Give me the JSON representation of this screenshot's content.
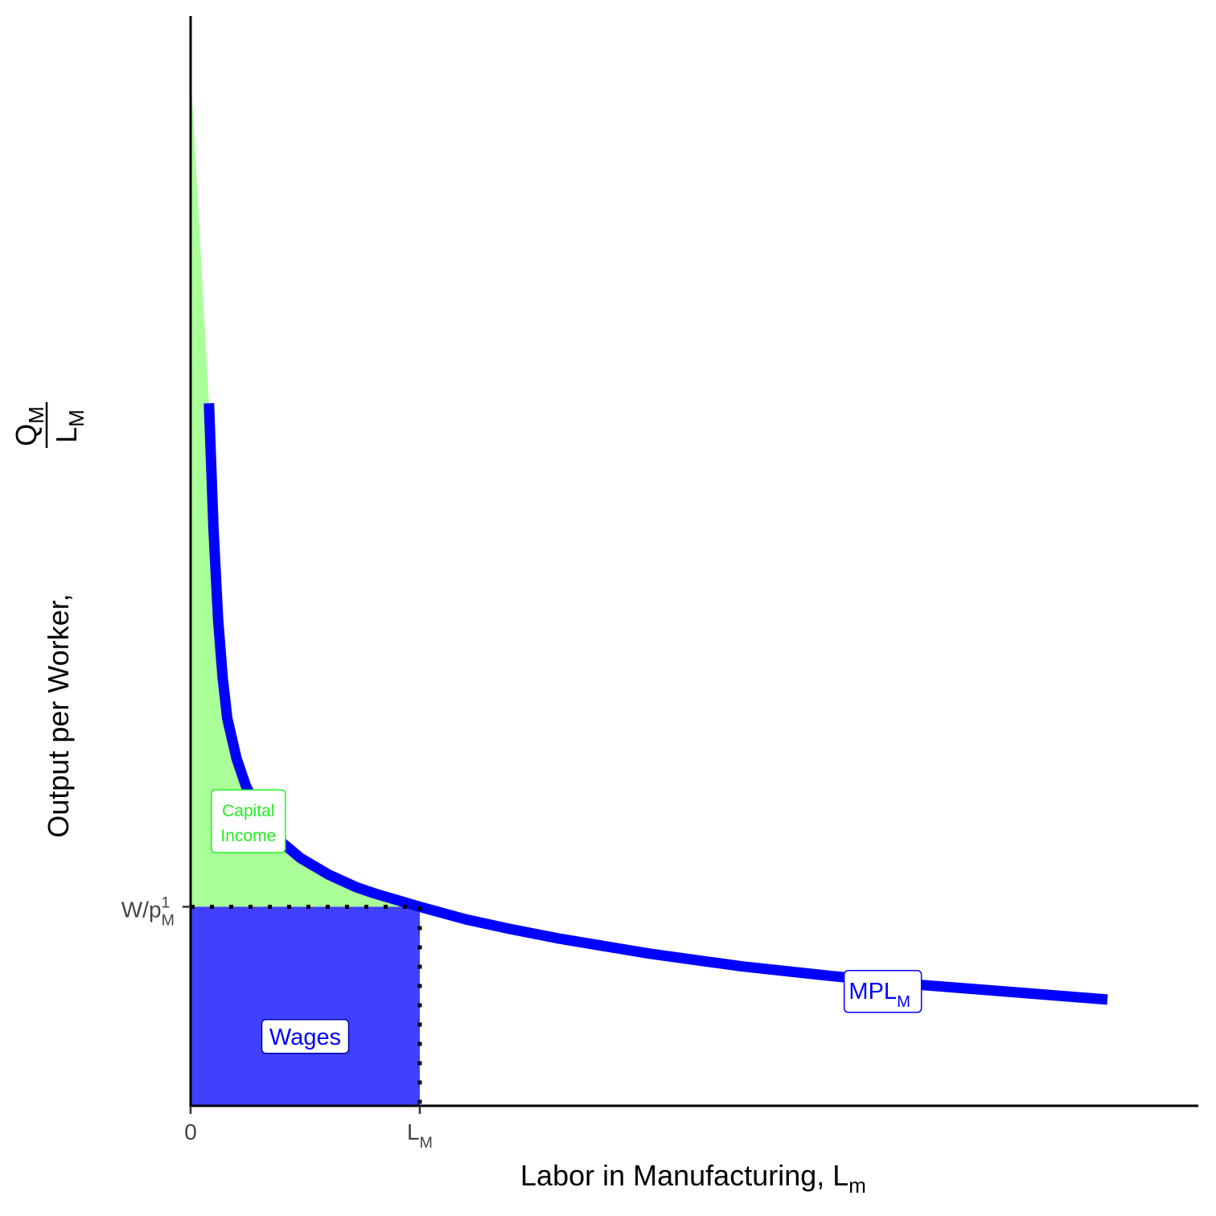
{
  "chart_data": {
    "type": "area",
    "title": "",
    "xlabel": {
      "text": "Labor in Manufacturing, L",
      "sub": "m"
    },
    "ylabel": {
      "text": "Output per Worker,",
      "fraction_numerator": {
        "text": "Q",
        "sub": "M"
      },
      "fraction_denominator": {
        "text": "L",
        "sub": "M"
      }
    },
    "xlim": [
      0,
      10
    ],
    "ylim": [
      0,
      12
    ],
    "grid": false,
    "x_ticks": [
      {
        "value": 0,
        "text": "0",
        "sub": "",
        "sup": ""
      },
      {
        "value": 2.5,
        "text": "L",
        "sub": "M",
        "sup": ""
      }
    ],
    "y_ticks": [
      {
        "value": 2.21,
        "text": "W/p",
        "sub": "M",
        "sup": "1"
      }
    ],
    "series": [
      {
        "name": "MPL",
        "name_sub": "M",
        "color": "#0000ff",
        "kind": "line",
        "x": [
          0.2,
          0.25,
          0.3,
          0.35,
          0.4,
          0.5,
          0.6,
          0.7,
          0.8,
          1.0,
          1.2,
          1.5,
          1.8,
          2.0,
          2.5,
          3.0,
          3.5,
          4.0,
          5.0,
          6.0,
          7.0,
          8.0,
          9.0,
          10.0
        ],
        "y": [
          7.8,
          6.4,
          5.4,
          4.75,
          4.3,
          3.86,
          3.56,
          3.35,
          3.16,
          2.92,
          2.75,
          2.57,
          2.43,
          2.36,
          2.21,
          2.07,
          1.96,
          1.86,
          1.69,
          1.55,
          1.44,
          1.34,
          1.26,
          1.18
        ]
      }
    ],
    "areas": [
      {
        "name": "Capital Income",
        "fill": "#aaff99",
        "label_color": "#22ee22",
        "x": [
          0.0,
          0.2,
          0.25,
          0.3,
          0.35,
          0.4,
          0.5,
          0.6,
          0.7,
          0.8,
          1.0,
          1.2,
          1.5,
          1.8,
          2.0,
          2.5
        ],
        "y": [
          11.5,
          7.8,
          6.4,
          5.4,
          4.75,
          4.3,
          3.86,
          3.56,
          3.35,
          3.16,
          2.92,
          2.75,
          2.57,
          2.43,
          2.36,
          2.21
        ],
        "floor": 2.21
      },
      {
        "name": "Wages",
        "fill": "#4040ff",
        "label_color": "#0000ff",
        "x0": 0,
        "x1": 2.5,
        "y0": 0,
        "y1": 2.21
      }
    ],
    "annotations": [
      {
        "text": "Capital",
        "line2": "Income",
        "x": 0.63,
        "y": 3.16,
        "color": "#22ee22"
      },
      {
        "text": "Wages",
        "x": 1.25,
        "y": 0.77,
        "color": "#0000ff"
      },
      {
        "text": "MPL",
        "sub": "M",
        "x": 7.55,
        "y": 1.27,
        "color": "#0000ff"
      }
    ],
    "reference_lines": [
      {
        "orientation": "horizontal",
        "y": 2.21,
        "x_from": 0,
        "x_to": 2.5,
        "style": "dotted"
      },
      {
        "orientation": "vertical",
        "x": 2.5,
        "y_from": 0,
        "y_to": 2.21,
        "style": "dotted"
      }
    ]
  }
}
